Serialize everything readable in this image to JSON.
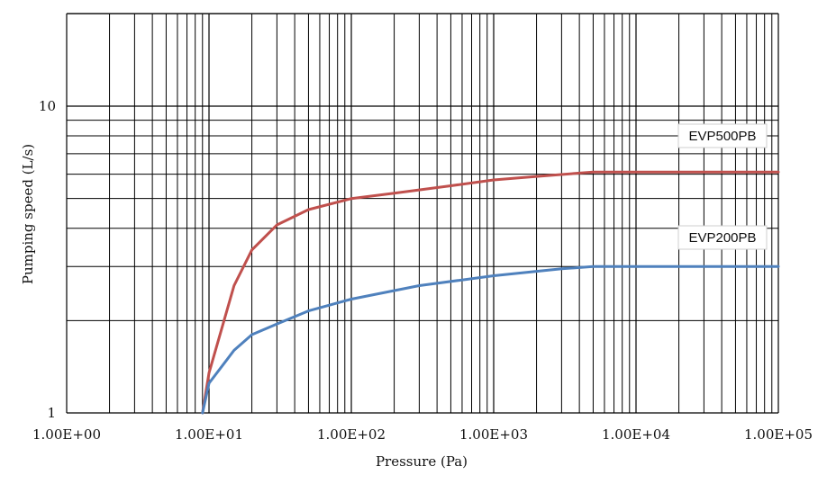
{
  "chart_data": {
    "type": "line",
    "title": "",
    "xlabel": "Pressure (Pa)",
    "ylabel": "Pumping speed (L/s)",
    "x_scale": "log",
    "y_scale": "log",
    "xlim": [
      1,
      100000
    ],
    "ylim": [
      1,
      20
    ],
    "grid": true,
    "x_tick_labels": [
      "1.00E+00",
      "1.00E+01",
      "1.00E+02",
      "1.00E+03",
      "1.00E+04",
      "1.00E+05"
    ],
    "y_tick_labels": [
      "1",
      "10"
    ],
    "series": [
      {
        "name": "EVP500PB",
        "color": "#c0504d",
        "x": [
          9,
          10,
          15,
          20,
          30,
          50,
          100,
          200,
          500,
          1000,
          2000,
          5000,
          10000,
          100000
        ],
        "y": [
          1.0,
          1.35,
          2.6,
          3.4,
          4.1,
          4.6,
          5.0,
          5.2,
          5.5,
          5.75,
          5.9,
          6.1,
          6.1,
          6.1
        ]
      },
      {
        "name": "EVP200PB",
        "color": "#4f81bd",
        "x": [
          9,
          10,
          15,
          20,
          30,
          50,
          100,
          300,
          1000,
          3000,
          5000,
          10000,
          100000
        ],
        "y": [
          1.0,
          1.25,
          1.6,
          1.8,
          1.95,
          2.15,
          2.35,
          2.6,
          2.8,
          2.95,
          3.0,
          3.0,
          3.0
        ]
      }
    ],
    "legend": {
      "placement": "right, next to curves",
      "entries": [
        "EVP500PB",
        "EVP200PB"
      ]
    }
  }
}
